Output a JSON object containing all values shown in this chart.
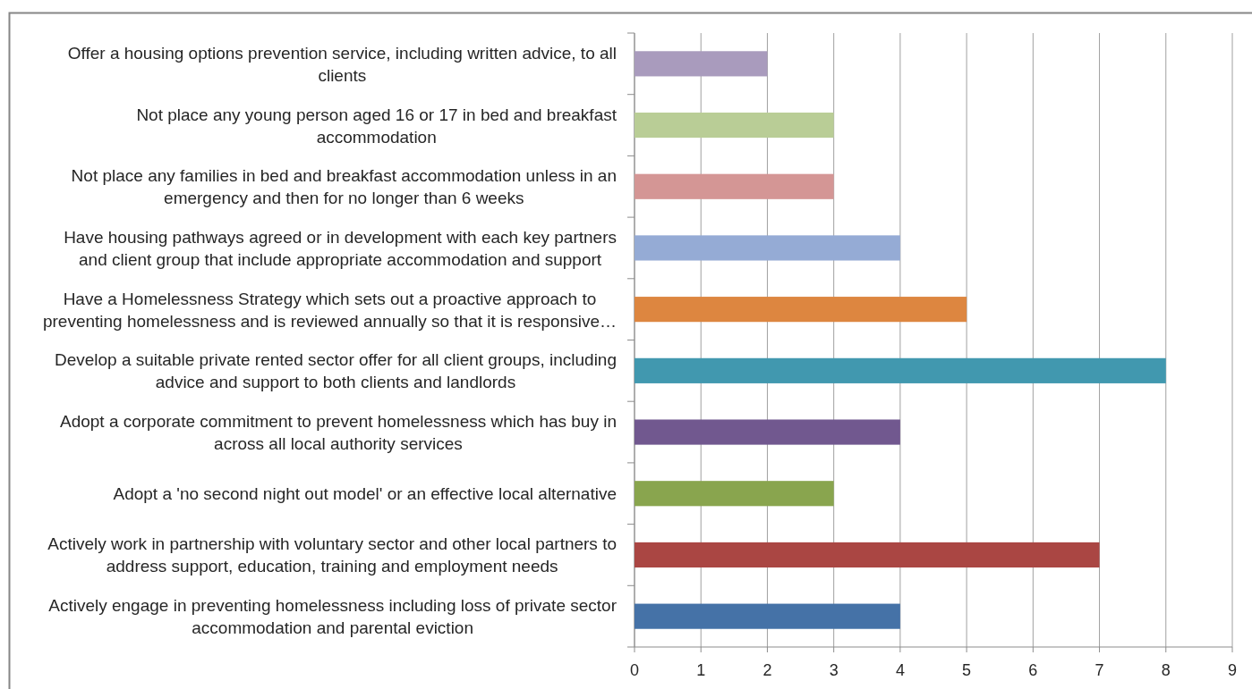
{
  "chart_data": {
    "type": "bar",
    "orientation": "horizontal",
    "categories": [
      "Offer a housing options prevention service, including written advice, to all clients",
      "Not place any young person aged 16 or 17 in bed and breakfast accommodation",
      "Not place any families in bed and breakfast accommodation unless in an emergency and then for no longer than 6 weeks",
      "Have housing pathways agreed or in development with each key partners and client group that include appropriate accommodation and support",
      "Have a Homelessness Strategy which sets out a proactive approach to preventing homelessness and is reviewed annually so that it is responsive…",
      "Develop a suitable private rented sector offer for all client groups, including advice and support to both clients and landlords",
      "Adopt a corporate commitment to prevent homelessness which has buy in across all local authority services",
      "Adopt a 'no second night out model' or an effective local alternative",
      "Actively work in partnership with voluntary sector and other local partners to address support, education, training and employment needs",
      "Actively engage in preventing homelessness including loss of private sector accommodation and parental eviction"
    ],
    "values": [
      2,
      3,
      3,
      4,
      5,
      8,
      4,
      3,
      7,
      4
    ],
    "colors": [
      "#a99bbd",
      "#b9cd96",
      "#d49695",
      "#95abd5",
      "#dd8640",
      "#4198af",
      "#71588f",
      "#89a54e",
      "#aa4643",
      "#4572a7"
    ],
    "xlim": [
      0,
      9
    ],
    "xticks": [
      0,
      1,
      2,
      3,
      4,
      5,
      6,
      7,
      8,
      9
    ],
    "grid": "x"
  }
}
